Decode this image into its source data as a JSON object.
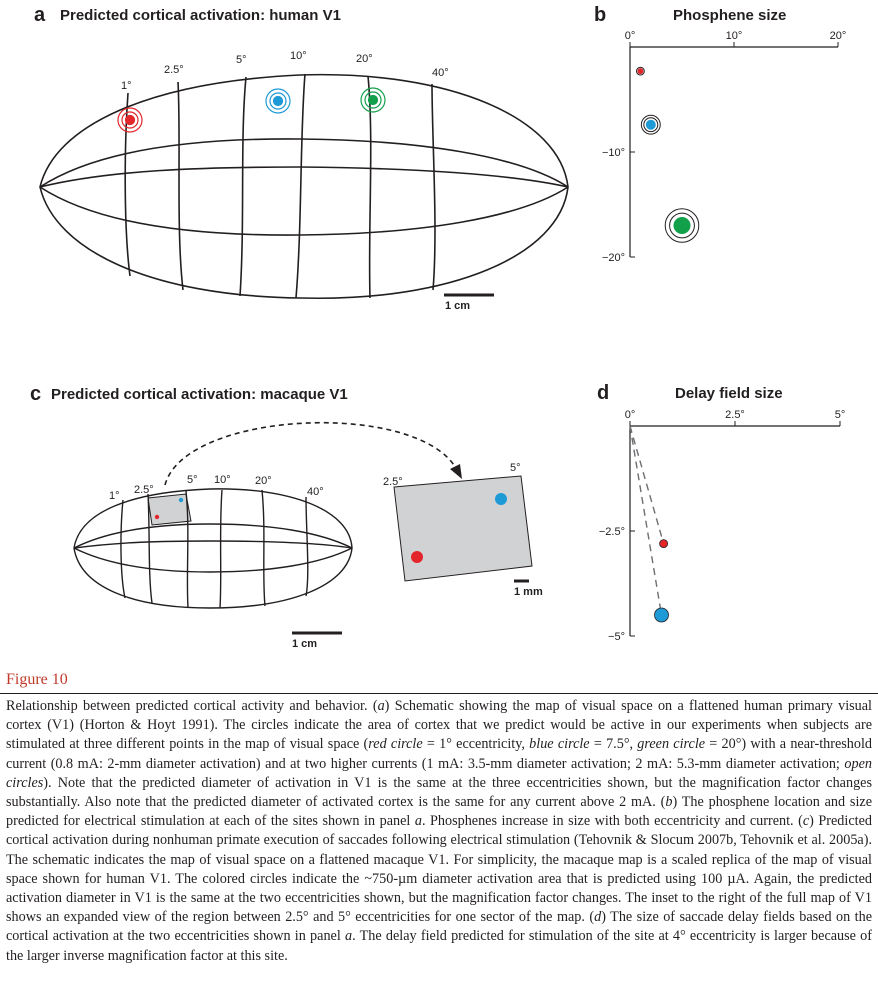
{
  "panel_a": {
    "letter": "a",
    "title": "Predicted cortical activation: human V1",
    "ecc_labels": [
      "1°",
      "2.5°",
      "5°",
      "10°",
      "20°",
      "40°"
    ],
    "scale_label": "1 cm",
    "colors": {
      "red": "#e3262b",
      "blue": "#1e9ad6",
      "green": "#12a04b",
      "outline": "#231f20"
    }
  },
  "panel_b": {
    "letter": "b",
    "title": "Phosphene size",
    "x_ticks": [
      "0°",
      "10°",
      "20°"
    ],
    "y_ticks": [
      "−10°",
      "−20°"
    ]
  },
  "panel_c": {
    "letter": "c",
    "title": "Predicted cortical activation: macaque V1",
    "ecc_labels": [
      "1°",
      "2.5°",
      "5°",
      "10°",
      "20°",
      "40°"
    ],
    "inset_labels": [
      "2.5°",
      "5°"
    ],
    "scale_label": "1 cm",
    "inset_scale_label": "1 mm"
  },
  "panel_d": {
    "letter": "d",
    "title": "Delay field size",
    "x_ticks": [
      "0°",
      "2.5°",
      "5°"
    ],
    "y_ticks": [
      "−2.5°",
      "−5°"
    ]
  },
  "chart_data": [
    {
      "type": "scatter",
      "title": "Phosphene size",
      "xlabel": "",
      "ylabel": "",
      "xlim": [
        0,
        20
      ],
      "ylim": [
        -20,
        0
      ],
      "x_ticks": [
        0,
        10,
        20
      ],
      "y_ticks": [
        -10,
        -20
      ],
      "series": [
        {
          "color": "#e3262b",
          "x": [
            1
          ],
          "y": [
            -2.3
          ],
          "rings": 2
        },
        {
          "color": "#1e9ad6",
          "x": [
            2
          ],
          "y": [
            -7.4
          ],
          "rings": 3
        },
        {
          "color": "#12a04b",
          "x": [
            5
          ],
          "y": [
            -17.0
          ],
          "rings": 3
        }
      ]
    },
    {
      "type": "scatter",
      "title": "Delay field size",
      "xlabel": "",
      "ylabel": "",
      "xlim": [
        0,
        5
      ],
      "ylim": [
        -5,
        0
      ],
      "x_ticks": [
        0,
        2.5,
        5
      ],
      "y_ticks": [
        -2.5,
        -5
      ],
      "series": [
        {
          "color": "#e3262b",
          "x": [
            0.8
          ],
          "y": [
            -2.8
          ]
        },
        {
          "color": "#1e9ad6",
          "x": [
            0.75
          ],
          "y": [
            -4.5
          ]
        }
      ]
    }
  ],
  "figure": {
    "label": "Figure 10",
    "caption": [
      {
        "t": "Relationship between predicted cortical activity and behavior. ("
      },
      {
        "i": "a"
      },
      {
        "t": ") Schematic showing the map of visual space on a flattened human primary visual cortex (V1) (Horton & Hoyt 1991). The circles indicate the area of cortex that we predict would be active in our experiments when subjects are stimulated at three different points in the map of visual space ("
      },
      {
        "i": "red circle"
      },
      {
        "t": " = 1° eccentricity, "
      },
      {
        "i": "blue circle"
      },
      {
        "t": " = 7.5°, "
      },
      {
        "i": "green circle"
      },
      {
        "t": " = 20°) with a near-threshold current (0.8 mA: 2-mm diameter activation) and at two higher currents (1 mA: 3.5-mm diameter activation; 2 mA: 5.3-mm diameter activation; "
      },
      {
        "i": "open circles"
      },
      {
        "t": "). Note that the predicted diameter of activation in V1 is the same at the three eccentricities shown, but the magnification factor changes substantially. Also note that the predicted diameter of activated cortex is the same for any current above 2 mA. ("
      },
      {
        "i": "b"
      },
      {
        "t": ") The phosphene location and size predicted for electrical stimulation at each of the sites shown in panel "
      },
      {
        "i": "a"
      },
      {
        "t": ". Phosphenes increase in size with both eccentricity and current. ("
      },
      {
        "i": "c"
      },
      {
        "t": ") Predicted cortical activation during nonhuman primate execution of saccades following electrical stimulation (Tehovnik & Slocum 2007b, Tehovnik et al. 2005a). The schematic indicates the map of visual space on a flattened macaque V1. For simplicity, the macaque map is a scaled replica of the map of visual space shown for human V1. The colored circles indicate the ~750-µm diameter activation area that is predicted using 100 µA. Again, the predicted activation diameter in V1 is the same at the two eccentricities shown, but the magnification factor changes. The inset to the right of the full map of V1 shows an expanded view of the region between 2.5° and 5° eccentricities for one sector of the map. ("
      },
      {
        "i": "d"
      },
      {
        "t": ") The size of saccade delay fields based on the cortical activation at the two eccentricities shown in panel "
      },
      {
        "i": "a"
      },
      {
        "t": ". The delay field predicted for stimulation of the site at 4° eccentricity is larger because of the larger inverse magnification factor at this site."
      }
    ]
  }
}
